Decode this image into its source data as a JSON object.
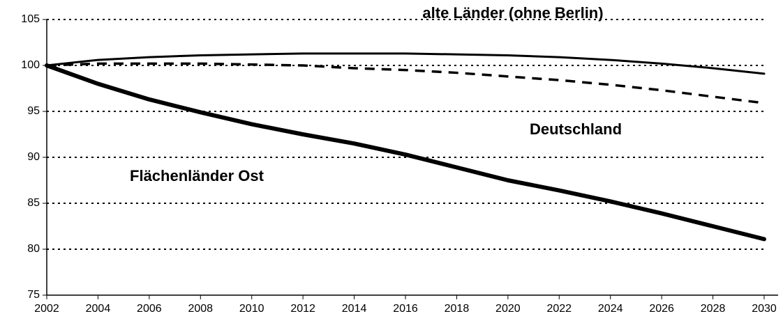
{
  "chart_data": {
    "type": "line",
    "x": [
      2002,
      2004,
      2006,
      2008,
      2010,
      2012,
      2014,
      2016,
      2018,
      2020,
      2022,
      2024,
      2026,
      2028,
      2030
    ],
    "series": [
      {
        "name": "alte Länder (ohne Berlin)",
        "color": "#000000",
        "dash": false,
        "values": [
          100,
          100.6,
          100.9,
          101.1,
          101.2,
          101.3,
          101.3,
          101.3,
          101.2,
          101.1,
          100.9,
          100.6,
          100.2,
          99.7,
          99.1
        ]
      },
      {
        "name": "Deutschland",
        "color": "#000000",
        "dash": true,
        "values": [
          100,
          100.2,
          100.2,
          100.2,
          100.1,
          100.0,
          99.7,
          99.5,
          99.2,
          98.8,
          98.4,
          97.9,
          97.3,
          96.6,
          95.9
        ]
      },
      {
        "name": "Flächenländer Ost",
        "color": "#000000",
        "dash": false,
        "values": [
          100,
          98.0,
          96.3,
          94.9,
          93.6,
          92.5,
          91.5,
          90.3,
          88.9,
          87.5,
          86.4,
          85.2,
          83.9,
          82.5,
          81.1
        ]
      }
    ],
    "xlim": [
      2002,
      2030
    ],
    "xticks": [
      2002,
      2004,
      2006,
      2008,
      2010,
      2012,
      2014,
      2016,
      2018,
      2020,
      2022,
      2024,
      2026,
      2028,
      2030
    ],
    "ylim": [
      75,
      105
    ],
    "yticks": [
      75,
      80,
      85,
      90,
      95,
      100,
      105
    ],
    "grid": true
  }
}
